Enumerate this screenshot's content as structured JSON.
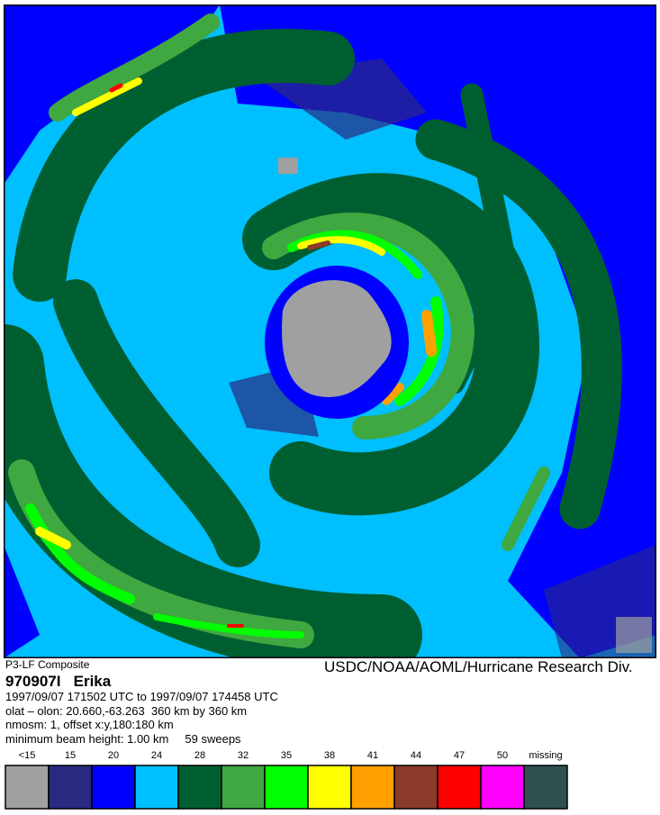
{
  "header": {
    "product": "P3-LF Composite",
    "agency": "USDC/NOAA/AOML/Hurricane Research Div.",
    "title": "970907I   Erika",
    "lines": [
      "1997/09/07 171502 UTC to 1997/09/07 174458 UTC",
      "olat – olon: 20.660,-63.263  360 km by 360 km",
      "nmosm: 1, offset x:y,180:180 km",
      "minimum beam height: 1.00 km     59 sweeps"
    ]
  },
  "legend": {
    "items": [
      {
        "label": "<15",
        "color": "#a0a0a0"
      },
      {
        "label": "15",
        "color": "#2a2a80"
      },
      {
        "label": "20",
        "color": "#0000ff"
      },
      {
        "label": "24",
        "color": "#00bfff"
      },
      {
        "label": "28",
        "color": "#005f30"
      },
      {
        "label": "32",
        "color": "#40a840"
      },
      {
        "label": "35",
        "color": "#00ff00"
      },
      {
        "label": "38",
        "color": "#ffff00"
      },
      {
        "label": "41",
        "color": "#ffa000"
      },
      {
        "label": "44",
        "color": "#8b3a2a"
      },
      {
        "label": "47",
        "color": "#ff0000"
      },
      {
        "label": "50",
        "color": "#ff00ff"
      },
      {
        "label": "missing",
        "color": "#305050"
      }
    ]
  }
}
